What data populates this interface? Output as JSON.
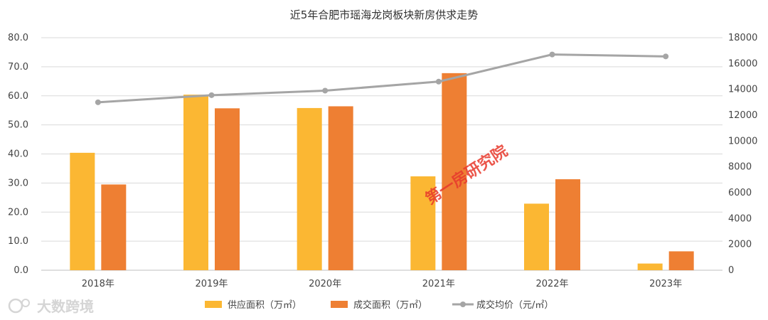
{
  "chart_data": {
    "type": "bar",
    "title": "近5年合肥市瑶海龙岗板块新房供求走势",
    "categories": [
      "2018年",
      "2019年",
      "2020年",
      "2021年",
      "2022年",
      "2023年"
    ],
    "series": [
      {
        "name": "供应面积（万㎡）",
        "kind": "bar",
        "axis": "left",
        "color": "#FBB733",
        "values": [
          40.4,
          60.4,
          55.8,
          32.3,
          22.9,
          2.3
        ]
      },
      {
        "name": "成交面积（万㎡）",
        "kind": "bar",
        "axis": "left",
        "color": "#EE7F33",
        "values": [
          29.5,
          55.7,
          56.4,
          67.8,
          31.3,
          6.5
        ]
      },
      {
        "name": "成交均价（元/㎡）",
        "kind": "line",
        "axis": "right",
        "color": "#A5A5A5",
        "values": [
          13000,
          13550,
          13900,
          14600,
          16700,
          16550
        ]
      }
    ],
    "y_left": {
      "min": 0,
      "max": 80,
      "step": 10,
      "tick_labels": [
        "0.0",
        "10.0",
        "20.0",
        "30.0",
        "40.0",
        "50.0",
        "60.0",
        "70.0",
        "80.0"
      ]
    },
    "y_right": {
      "min": 0,
      "max": 18000,
      "step": 2000,
      "tick_labels": [
        "0",
        "2000",
        "4000",
        "6000",
        "8000",
        "10000",
        "12000",
        "14000",
        "16000",
        "18000"
      ]
    },
    "grid": true,
    "legend_position": "bottom"
  },
  "watermark": "第一房研究院",
  "brand": "大数跨境"
}
